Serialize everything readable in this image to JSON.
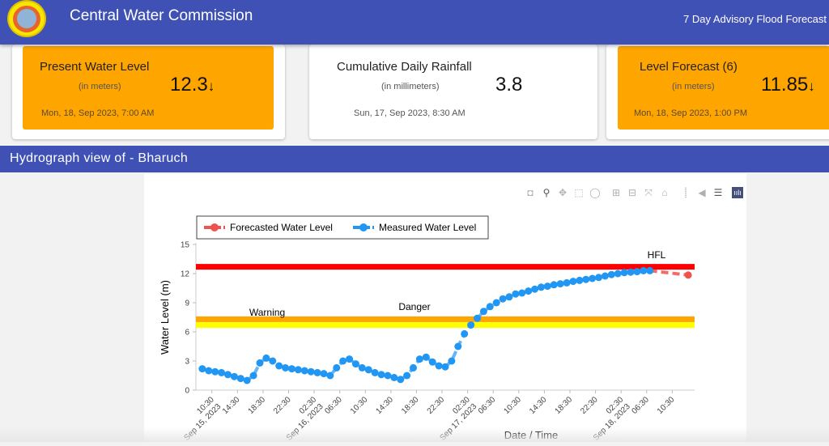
{
  "header": {
    "title": "Central Water Commission",
    "advisory": "7 Day Advisory Flood Forecast",
    "logo_icon": "cwc-emblem"
  },
  "cards": [
    {
      "title": "Present Water Level",
      "unit": "(in meters)",
      "value": "12.3",
      "trend": "↓",
      "date": "Mon, 18, Sep 2023, 7:00 AM",
      "highlight": "#ffa500"
    },
    {
      "title": "Cumulative Daily Rainfall",
      "unit": "(in millimeters)",
      "value": "3.8",
      "trend": "",
      "date": "Sun, 17, Sep 2023, 8:30 AM",
      "highlight": "#ffffff"
    },
    {
      "title": "Level Forecast (6)",
      "unit": "(in meters)",
      "value": "11.85",
      "trend": "↓",
      "date": "Mon, 18, Sep 2023, 1:00 PM",
      "highlight": "#ffa500"
    }
  ],
  "section": {
    "title": "Hydrograph view of - Bharuch"
  },
  "modebar": [
    "camera-icon",
    "zoom-icon",
    "pan-icon",
    "box-select-icon",
    "lasso-icon",
    "zoom-in-icon",
    "zoom-out-icon",
    "autoscale-icon",
    "reset-axes-icon",
    "spike-lines-icon",
    "hover-closest-icon",
    "hover-compare-icon",
    "plotly-logo-icon"
  ],
  "chart_data": {
    "type": "line",
    "xlabel": "Date / Time",
    "ylabel": "Water Level (m)",
    "xrange": [
      "2023-09-15T08:00",
      "2023-09-18T14:00"
    ],
    "ylim": [
      0,
      15
    ],
    "yticks": [
      0,
      3,
      6,
      9,
      12,
      15
    ],
    "grid": false,
    "legend_position": "top-left",
    "xticks": [
      {
        "t": "2023-09-15T10:30",
        "label": "10:30",
        "date": "Sep 15, 2023"
      },
      {
        "t": "2023-09-15T14:30",
        "label": "14:30",
        "date": ""
      },
      {
        "t": "2023-09-15T18:30",
        "label": "18:30",
        "date": ""
      },
      {
        "t": "2023-09-15T22:30",
        "label": "22:30",
        "date": ""
      },
      {
        "t": "2023-09-16T02:30",
        "label": "02:30",
        "date": "Sep 16, 2023"
      },
      {
        "t": "2023-09-16T06:30",
        "label": "06:30",
        "date": ""
      },
      {
        "t": "2023-09-16T10:30",
        "label": "10:30",
        "date": ""
      },
      {
        "t": "2023-09-16T14:30",
        "label": "14:30",
        "date": ""
      },
      {
        "t": "2023-09-16T18:30",
        "label": "18:30",
        "date": ""
      },
      {
        "t": "2023-09-16T22:30",
        "label": "22:30",
        "date": ""
      },
      {
        "t": "2023-09-17T02:30",
        "label": "02:30",
        "date": "Sep 17, 2023"
      },
      {
        "t": "2023-09-17T06:30",
        "label": "06:30",
        "date": ""
      },
      {
        "t": "2023-09-17T10:30",
        "label": "10:30",
        "date": ""
      },
      {
        "t": "2023-09-17T14:30",
        "label": "14:30",
        "date": ""
      },
      {
        "t": "2023-09-17T18:30",
        "label": "18:30",
        "date": ""
      },
      {
        "t": "2023-09-17T22:30",
        "label": "22:30",
        "date": ""
      },
      {
        "t": "2023-09-18T02:30",
        "label": "02:30",
        "date": "Sep 18, 2023"
      },
      {
        "t": "2023-09-18T06:30",
        "label": "06:30",
        "date": ""
      },
      {
        "t": "2023-09-18T10:30",
        "label": "10:30",
        "date": ""
      }
    ],
    "thresholds": [
      {
        "name": "HFL",
        "value": 12.7,
        "color": "#ff0000"
      },
      {
        "name": "Danger",
        "value": 7.3,
        "color": "#ffa500"
      },
      {
        "name": "Warning",
        "value": 6.7,
        "color": "#ffff00"
      }
    ],
    "series": [
      {
        "name": "Forecasted Water Level",
        "color": "#ef5350",
        "dash": true,
        "points": [
          [
            "2023-09-18T07:00",
            12.3
          ],
          [
            "2023-09-18T13:00",
            11.85
          ]
        ]
      },
      {
        "name": "Measured Water Level",
        "color": "#2196f3",
        "dash": false,
        "start": "2023-09-15T09:00",
        "step_hours": 1,
        "values": [
          2.2,
          2.0,
          1.9,
          1.8,
          1.6,
          1.4,
          1.2,
          1.0,
          1.5,
          2.8,
          3.3,
          3.0,
          2.5,
          2.3,
          2.2,
          2.1,
          2.0,
          1.9,
          1.8,
          1.7,
          1.5,
          2.3,
          3.0,
          3.2,
          2.7,
          2.3,
          2.1,
          1.8,
          1.6,
          1.5,
          1.3,
          1.1,
          1.5,
          2.3,
          3.2,
          3.4,
          2.9,
          2.5,
          2.4,
          3.0,
          4.5,
          5.8,
          6.7,
          7.4,
          8.1,
          8.6,
          9.0,
          9.4,
          9.6,
          9.9,
          10.0,
          10.2,
          10.4,
          10.6,
          10.7,
          10.85,
          10.95,
          11.05,
          11.2,
          11.3,
          11.4,
          11.5,
          11.6,
          11.75,
          11.9,
          12.0,
          12.1,
          12.15,
          12.2,
          12.3,
          12.3
        ]
      }
    ]
  }
}
